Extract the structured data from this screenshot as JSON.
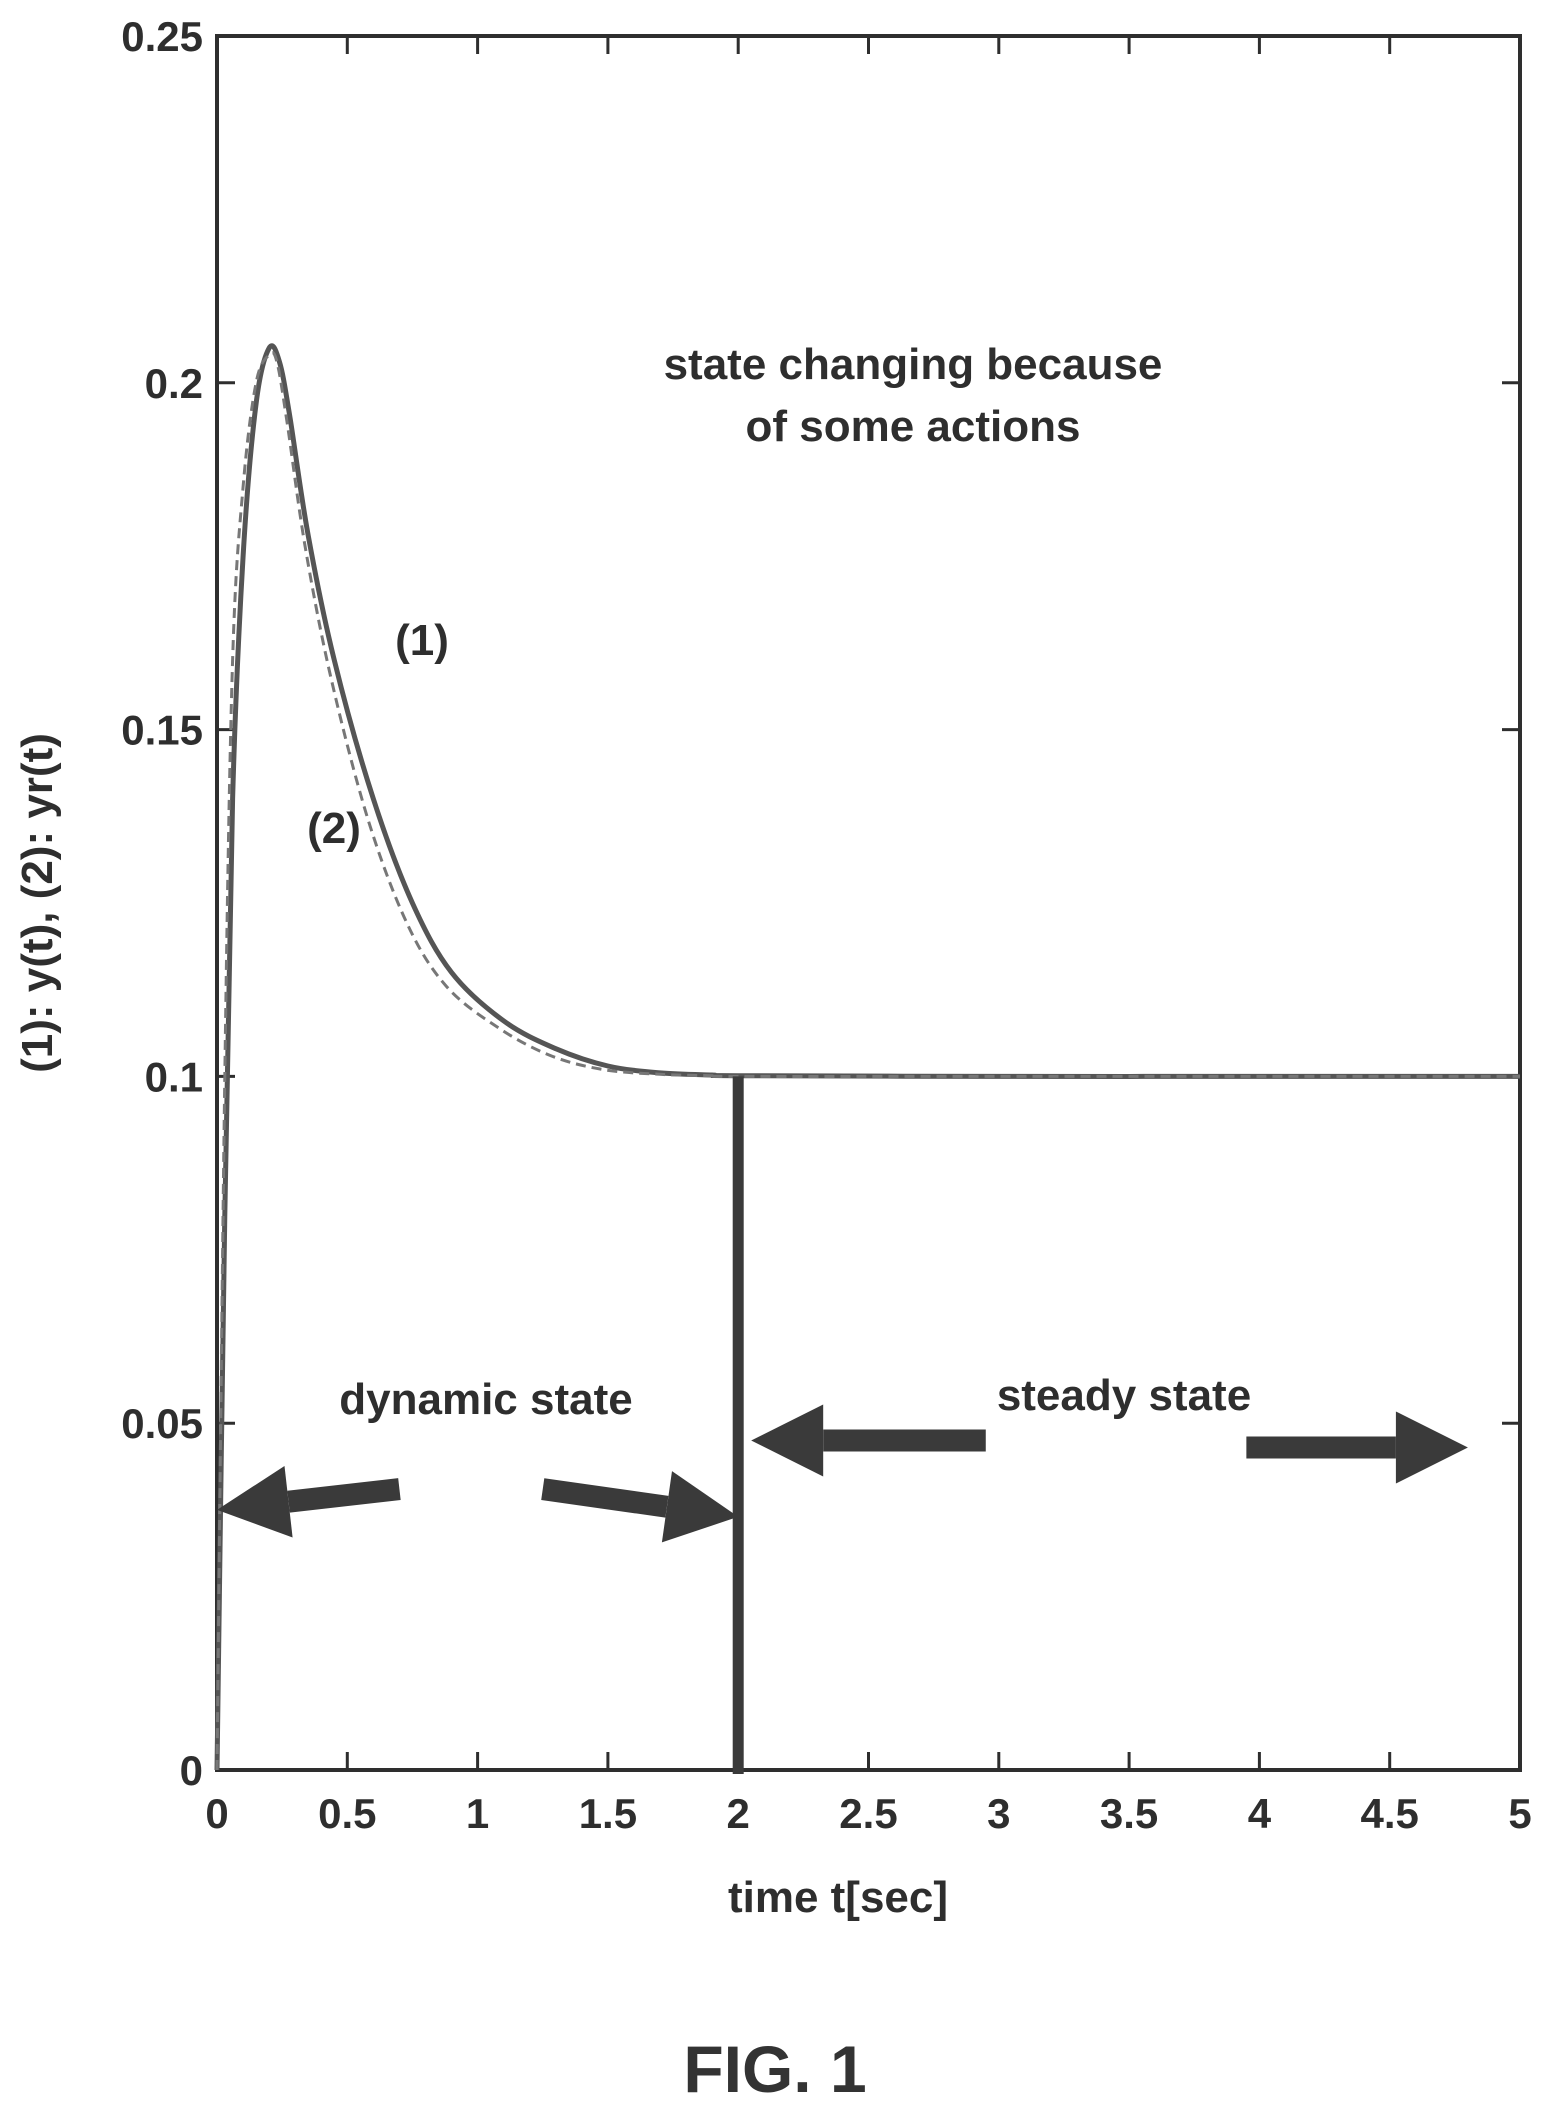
{
  "chart_data": {
    "type": "line",
    "xlabel": "time t[sec]",
    "ylabel": "(1): y(t), (2): yr(t)",
    "xlim": [
      0,
      5
    ],
    "ylim": [
      0,
      0.25
    ],
    "x_ticks": [
      "0",
      "0.5",
      "1",
      "1.5",
      "2",
      "2.5",
      "3",
      "3.5",
      "4",
      "4.5",
      "5"
    ],
    "y_ticks": [
      "0",
      "0.05",
      "0.1",
      "0.15",
      "0.2",
      "0.25"
    ],
    "grid": false,
    "series": [
      {
        "name": "(1)",
        "style": "solid",
        "x": [
          0,
          0.03,
          0.06,
          0.1,
          0.15,
          0.2,
          0.24,
          0.28,
          0.35,
          0.45,
          0.6,
          0.75,
          0.9,
          1.1,
          1.3,
          1.5,
          1.7,
          1.9,
          2.0,
          3.0,
          4.0,
          5.0
        ],
        "y": [
          0,
          0.08,
          0.14,
          0.175,
          0.197,
          0.205,
          0.203,
          0.195,
          0.178,
          0.16,
          0.14,
          0.125,
          0.115,
          0.108,
          0.104,
          0.1015,
          0.1005,
          0.1002,
          0.1001,
          0.1,
          0.1,
          0.1
        ]
      },
      {
        "name": "(2)",
        "style": "dashed",
        "x": [
          0,
          0.03,
          0.06,
          0.1,
          0.15,
          0.2,
          0.23,
          0.27,
          0.34,
          0.44,
          0.58,
          0.73,
          0.88,
          1.08,
          1.28,
          1.48,
          1.7,
          1.9,
          2.0,
          3.0,
          4.0,
          5.0
        ],
        "y": [
          0,
          0.1,
          0.16,
          0.185,
          0.2,
          0.204,
          0.203,
          0.194,
          0.176,
          0.157,
          0.137,
          0.122,
          0.113,
          0.107,
          0.103,
          0.101,
          0.1003,
          0.1001,
          0.1,
          0.1,
          0.1,
          0.1
        ]
      }
    ],
    "vertical_marker": {
      "x": 2
    },
    "annotations": {
      "state_changing": [
        "state changing because",
        "of some actions"
      ],
      "label_1": "(1)",
      "label_2": "(2)",
      "dynamic_state": "dynamic state",
      "steady_state": "steady state"
    },
    "arrows": [
      {
        "name": "dynamic-arrow-left",
        "from": [
          0.7,
          0.0405
        ],
        "to": [
          0.0,
          0.0375
        ]
      },
      {
        "name": "dynamic-arrow-right",
        "from": [
          1.25,
          0.0405
        ],
        "to": [
          2.0,
          0.0365
        ]
      },
      {
        "name": "steady-arrow-left",
        "from": [
          2.95,
          0.0475
        ],
        "to": [
          2.05,
          0.0475
        ]
      },
      {
        "name": "steady-arrow-right",
        "from": [
          3.95,
          0.0465
        ],
        "to": [
          4.8,
          0.0465
        ]
      }
    ]
  },
  "figure_label": "FIG. 1",
  "colors": {
    "ink": "#2e2e2e",
    "curve": "#555555",
    "dashed": "#777777",
    "arrow": "#3a3a3a"
  }
}
